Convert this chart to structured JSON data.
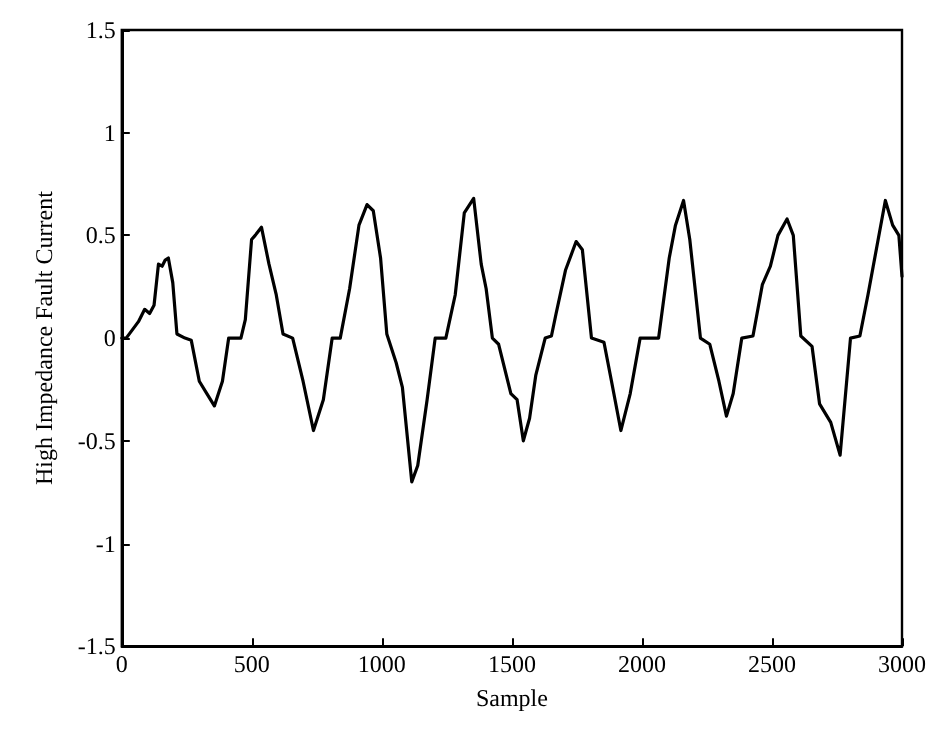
{
  "chart_data": {
    "type": "line",
    "xlabel": "Sample",
    "ylabel": "High Impedance Fault Current",
    "xlim": [
      0,
      3000
    ],
    "ylim": [
      -1.5,
      1.5
    ],
    "xticks": [
      0,
      500,
      1000,
      1500,
      2000,
      2500,
      3000
    ],
    "yticks": [
      -1.5,
      -1,
      -0.5,
      0,
      0.5,
      1,
      1.5
    ],
    "grid": false,
    "marker": "none",
    "line_style": "solid",
    "series": [
      {
        "color": "#000000",
        "x": [
          0,
          17,
          64,
          88,
          107,
          124,
          141,
          155,
          167,
          179,
          196,
          212,
          243,
          267,
          298,
          327,
          356,
          387,
          411,
          458,
          475,
          499,
          513,
          537,
          566,
          594,
          620,
          657,
          697,
          737,
          775,
          809,
          840,
          876,
          912,
          943,
          967,
          995,
          1019,
          1055,
          1079,
          1115,
          1138,
          1174,
          1205,
          1246,
          1282,
          1317,
          1353,
          1382,
          1401,
          1425,
          1449,
          1496,
          1520,
          1544,
          1568,
          1592,
          1628,
          1652,
          1670,
          1706,
          1747,
          1771,
          1806,
          1854,
          1883,
          1919,
          1955,
          1993,
          2064,
          2105,
          2129,
          2160,
          2184,
          2225,
          2261,
          2296,
          2325,
          2351,
          2384,
          2427,
          2463,
          2494,
          2523,
          2558,
          2582,
          2611,
          2654,
          2683,
          2726,
          2762,
          2802,
          2838,
          2869,
          2936,
          2964,
          2988,
          3000
        ],
        "values": [
          0,
          0,
          0.08,
          0.14,
          0.12,
          0.16,
          0.36,
          0.35,
          0.38,
          0.39,
          0.27,
          0.02,
          0,
          -0.01,
          -0.21,
          -0.27,
          -0.33,
          -0.21,
          0,
          0,
          0.09,
          0.48,
          0.5,
          0.54,
          0.36,
          0.21,
          0.02,
          0,
          -0.21,
          -0.45,
          -0.3,
          0,
          0,
          0.24,
          0.55,
          0.65,
          0.62,
          0.39,
          0.02,
          -0.12,
          -0.24,
          -0.7,
          -0.62,
          -0.3,
          0,
          0,
          0.21,
          0.61,
          0.68,
          0.36,
          0.24,
          0,
          -0.03,
          -0.27,
          -0.3,
          -0.5,
          -0.39,
          -0.18,
          0,
          0.01,
          0.12,
          0.33,
          0.47,
          0.43,
          0,
          -0.02,
          -0.21,
          -0.45,
          -0.27,
          0,
          0,
          0.39,
          0.55,
          0.67,
          0.48,
          0,
          -0.03,
          -0.21,
          -0.38,
          -0.27,
          0,
          0.01,
          0.26,
          0.35,
          0.5,
          0.58,
          0.5,
          0.01,
          -0.04,
          -0.32,
          -0.41,
          -0.57,
          0,
          0.01,
          0.21,
          0.67,
          0.55,
          0.5,
          0.3
        ]
      }
    ]
  }
}
